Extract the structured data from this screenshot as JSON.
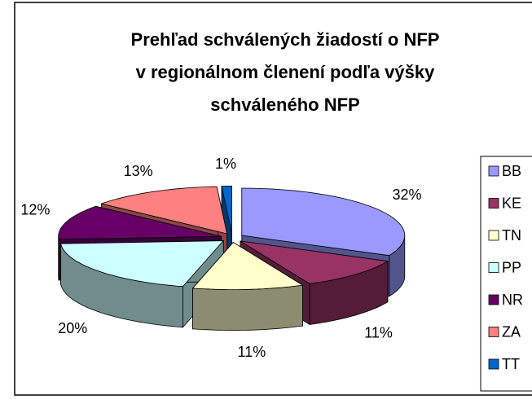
{
  "chart_data": {
    "type": "pie3d",
    "title": [
      "Prehľad schválených  žiadostí o NFP",
      "v regionálnom členení podľa výšky",
      "schváleného NFP"
    ],
    "categories": [
      "BB",
      "KE",
      "TN",
      "PP",
      "NR",
      "ZA",
      "TT"
    ],
    "values": [
      32,
      11,
      11,
      20,
      12,
      13,
      1
    ],
    "value_labels": [
      "32%",
      "11%",
      "11%",
      "20%",
      "12%",
      "13%",
      "1%"
    ],
    "colors": [
      "#9999ff",
      "#993366",
      "#ffffcc",
      "#ccffff",
      "#660066",
      "#ff8080",
      "#0066cc"
    ]
  }
}
